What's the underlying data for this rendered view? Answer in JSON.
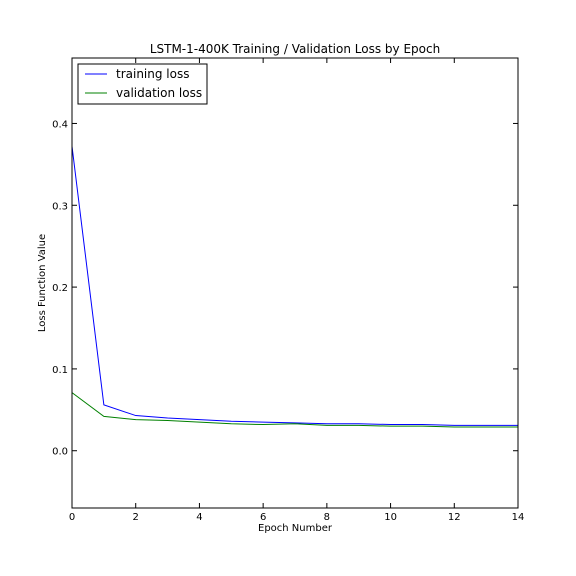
{
  "chart_data": {
    "type": "line",
    "title": "LSTM-1-400K Training / Validation Loss by Epoch",
    "xlabel": "Epoch Number",
    "ylabel": "Loss Function Value",
    "xlim": [
      0,
      14
    ],
    "ylim": [
      -0.07,
      0.48
    ],
    "xticks": [
      0,
      2,
      4,
      6,
      8,
      10,
      12,
      14
    ],
    "yticks": [
      0.0,
      0.1,
      0.2,
      0.3,
      0.4
    ],
    "ytick_labels": [
      "0.0",
      "0.1",
      "0.2",
      "0.3",
      "0.4"
    ],
    "grid": false,
    "legend_position": "top-left",
    "x": [
      0,
      1,
      2,
      3,
      4,
      5,
      6,
      7,
      8,
      9,
      10,
      11,
      12,
      13,
      14
    ],
    "series": [
      {
        "name": "training loss",
        "color": "#0000ff",
        "values": [
          0.372,
          0.056,
          0.043,
          0.04,
          0.038,
          0.036,
          0.035,
          0.034,
          0.033,
          0.033,
          0.032,
          0.032,
          0.031,
          0.031,
          0.031
        ]
      },
      {
        "name": "validation loss",
        "color": "#008000",
        "values": [
          0.071,
          0.042,
          0.038,
          0.037,
          0.035,
          0.033,
          0.032,
          0.033,
          0.031,
          0.031,
          0.03,
          0.03,
          0.029,
          0.029,
          0.029
        ]
      }
    ]
  }
}
